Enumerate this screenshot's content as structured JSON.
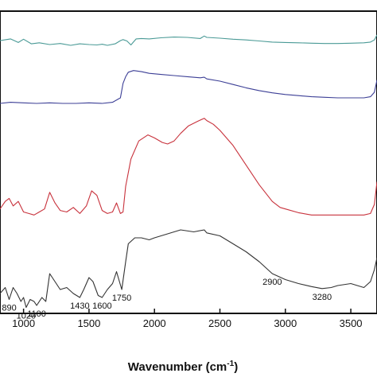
{
  "chart_data": {
    "type": "line",
    "xlabel": "Wavenumber (cm⁻¹)",
    "xlabel_main": "Wavenumber (cm",
    "xlabel_sup": "-1",
    "xlabel_close": ")",
    "xlim": [
      820,
      3700
    ],
    "x_ticks": [
      1000,
      1500,
      2000,
      2500,
      3000,
      3500
    ],
    "x_tick_labels": [
      "1000",
      "1500",
      "2000",
      "2500",
      "3000",
      "3500"
    ],
    "y_ticks_shown": false,
    "series": [
      {
        "color": "#4a9a96",
        "x": [
          820,
          900,
          960,
          1000,
          1060,
          1120,
          1200,
          1280,
          1360,
          1430,
          1500,
          1560,
          1600,
          1640,
          1700,
          1740,
          1760,
          1790,
          1820,
          1860,
          1900,
          1960,
          2050,
          2150,
          2250,
          2350,
          2380,
          2400,
          2500,
          2600,
          2700,
          2800,
          2900,
          3000,
          3100,
          3200,
          3300,
          3400,
          3500,
          3600,
          3650,
          3680,
          3700
        ],
        "y": [
          0.1,
          0.35,
          -0.15,
          0.3,
          -0.35,
          -0.2,
          -0.45,
          -0.3,
          -0.55,
          -0.35,
          -0.45,
          -0.5,
          -0.4,
          -0.55,
          -0.35,
          0.1,
          0.25,
          0.05,
          -0.5,
          0.35,
          0.4,
          0.35,
          0.5,
          0.6,
          0.55,
          0.4,
          0.75,
          0.55,
          0.45,
          0.3,
          0.2,
          0.05,
          -0.1,
          -0.15,
          -0.2,
          -0.25,
          -0.3,
          -0.3,
          -0.25,
          -0.2,
          -0.1,
          0.2,
          0.9
        ]
      },
      {
        "color": "#3c3f96",
        "x": [
          820,
          900,
          1000,
          1100,
          1200,
          1300,
          1400,
          1500,
          1600,
          1680,
          1740,
          1760,
          1780,
          1800,
          1840,
          1900,
          1960,
          2050,
          2150,
          2250,
          2350,
          2380,
          2400,
          2500,
          2600,
          2700,
          2800,
          2900,
          3000,
          3100,
          3200,
          3300,
          3400,
          3500,
          3600,
          3650,
          3680,
          3700
        ],
        "y": [
          0.0,
          0.1,
          0.05,
          0.0,
          0.05,
          0.0,
          0.0,
          0.05,
          0.0,
          0.1,
          0.5,
          1.8,
          2.4,
          2.8,
          2.95,
          2.85,
          2.7,
          2.6,
          2.5,
          2.4,
          2.3,
          2.35,
          2.2,
          2.0,
          1.7,
          1.4,
          1.15,
          0.95,
          0.8,
          0.7,
          0.6,
          0.55,
          0.5,
          0.5,
          0.5,
          0.6,
          1.0,
          2.1
        ]
      },
      {
        "color": "#c8323c",
        "x": [
          820,
          860,
          890,
          920,
          960,
          1000,
          1040,
          1080,
          1120,
          1160,
          1200,
          1240,
          1280,
          1330,
          1380,
          1430,
          1480,
          1520,
          1560,
          1600,
          1640,
          1680,
          1710,
          1740,
          1760,
          1780,
          1820,
          1880,
          1950,
          2000,
          2060,
          2100,
          2150,
          2200,
          2260,
          2330,
          2380,
          2400,
          2450,
          2500,
          2600,
          2700,
          2800,
          2900,
          2960,
          3000,
          3100,
          3200,
          3300,
          3400,
          3500,
          3600,
          3650,
          3680,
          3700
        ],
        "y": [
          0.7,
          1.2,
          1.4,
          0.9,
          1.2,
          0.5,
          0.4,
          0.3,
          0.5,
          0.7,
          1.8,
          1.1,
          0.6,
          0.5,
          0.8,
          0.4,
          0.9,
          1.9,
          1.6,
          0.6,
          0.4,
          0.5,
          1.1,
          0.4,
          0.5,
          2.2,
          4.0,
          5.2,
          5.6,
          5.4,
          5.1,
          5.0,
          5.2,
          5.7,
          6.2,
          6.5,
          6.7,
          6.55,
          6.3,
          5.9,
          4.9,
          3.6,
          2.3,
          1.2,
          0.8,
          0.7,
          0.45,
          0.3,
          0.3,
          0.3,
          0.3,
          0.3,
          0.4,
          1.0,
          2.5
        ]
      },
      {
        "color": "#333333",
        "x": [
          820,
          860,
          890,
          920,
          950,
          980,
          1000,
          1020,
          1050,
          1080,
          1100,
          1140,
          1170,
          1200,
          1240,
          1280,
          1330,
          1380,
          1430,
          1460,
          1500,
          1530,
          1570,
          1600,
          1640,
          1680,
          1710,
          1750,
          1780,
          1800,
          1850,
          1900,
          1960,
          2000,
          2100,
          2200,
          2300,
          2380,
          2400,
          2500,
          2600,
          2700,
          2800,
          2900,
          3000,
          3100,
          3200,
          3280,
          3350,
          3400,
          3500,
          3600,
          3650,
          3680,
          3700
        ],
        "y": [
          0.6,
          0.9,
          0.3,
          0.9,
          0.6,
          0.2,
          0.4,
          -0.1,
          0.3,
          0.2,
          0.0,
          0.4,
          0.2,
          1.6,
          1.2,
          0.8,
          0.9,
          0.6,
          0.4,
          0.8,
          1.4,
          1.2,
          0.5,
          0.4,
          0.8,
          1.1,
          1.7,
          0.8,
          2.2,
          3.1,
          3.4,
          3.4,
          3.3,
          3.4,
          3.6,
          3.8,
          3.7,
          3.8,
          3.65,
          3.5,
          3.1,
          2.7,
          2.2,
          1.6,
          1.3,
          1.1,
          0.95,
          0.85,
          0.9,
          1.0,
          1.1,
          0.9,
          1.2,
          1.8,
          2.4
        ]
      }
    ],
    "annotations": [
      {
        "text": "890",
        "x": 890,
        "y": 0.3
      },
      {
        "text": "1020",
        "x": 1020,
        "y": -0.1
      },
      {
        "text": "1100",
        "x": 1100,
        "y": 0.0
      },
      {
        "text": "1430",
        "x": 1430,
        "y": 0.4
      },
      {
        "text": "1600",
        "x": 1600,
        "y": 0.4
      },
      {
        "text": "1750",
        "x": 1750,
        "y": 0.8
      },
      {
        "text": "2900",
        "x": 2900,
        "y": 1.6
      },
      {
        "text": "3280",
        "x": 3280,
        "y": 0.85
      }
    ]
  }
}
